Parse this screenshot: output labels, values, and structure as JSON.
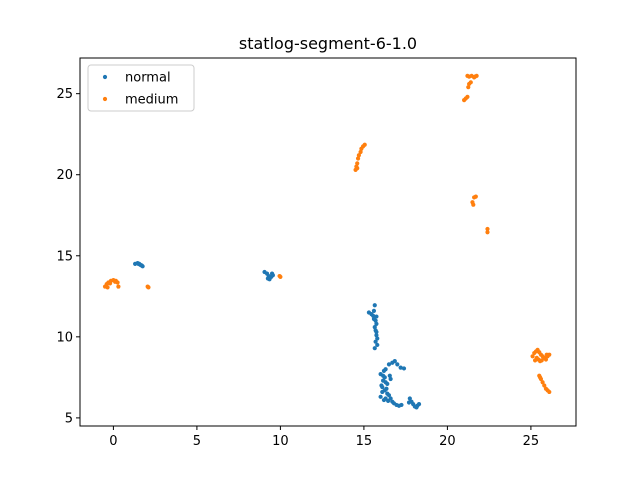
{
  "chart_data": {
    "type": "scatter",
    "title": "statlog-segment-6-1.0",
    "xlabel": "",
    "ylabel": "",
    "xlim": [
      -2.0,
      27.7
    ],
    "ylim": [
      4.5,
      27.2
    ],
    "xticks": [
      0,
      5,
      10,
      15,
      20,
      25
    ],
    "yticks": [
      5,
      10,
      15,
      20,
      25
    ],
    "grid": false,
    "legend_position": "upper left",
    "series": [
      {
        "name": "normal",
        "color": "#1f77b4",
        "points": [
          [
            1.3,
            14.5
          ],
          [
            1.45,
            14.55
          ],
          [
            1.55,
            14.5
          ],
          [
            1.6,
            14.45
          ],
          [
            1.7,
            14.4
          ],
          [
            1.75,
            14.35
          ],
          [
            1.5,
            14.5
          ],
          [
            1.65,
            14.42
          ],
          [
            9.05,
            14.0
          ],
          [
            9.2,
            13.9
          ],
          [
            9.3,
            13.75
          ],
          [
            9.35,
            13.55
          ],
          [
            9.5,
            13.9
          ],
          [
            9.55,
            13.8
          ],
          [
            9.25,
            13.6
          ],
          [
            9.45,
            13.7
          ],
          [
            15.3,
            11.5
          ],
          [
            15.45,
            11.4
          ],
          [
            15.55,
            11.3
          ],
          [
            15.65,
            11.95
          ],
          [
            15.6,
            11.6
          ],
          [
            15.75,
            11.25
          ],
          [
            15.7,
            11.0
          ],
          [
            15.75,
            10.8
          ],
          [
            15.65,
            10.6
          ],
          [
            15.7,
            10.4
          ],
          [
            15.75,
            10.1
          ],
          [
            15.8,
            9.9
          ],
          [
            15.7,
            9.7
          ],
          [
            15.65,
            9.3
          ],
          [
            15.8,
            9.5
          ],
          [
            15.75,
            10.3
          ],
          [
            15.6,
            11.1
          ],
          [
            16.0,
            6.3
          ],
          [
            16.1,
            6.6
          ],
          [
            16.05,
            7.0
          ],
          [
            16.15,
            7.3
          ],
          [
            16.0,
            7.7
          ],
          [
            16.2,
            7.9
          ],
          [
            16.25,
            7.5
          ],
          [
            16.3,
            7.2
          ],
          [
            16.1,
            6.9
          ],
          [
            16.35,
            6.8
          ],
          [
            16.4,
            6.5
          ],
          [
            16.3,
            6.2
          ],
          [
            16.5,
            6.4
          ],
          [
            16.6,
            6.2
          ],
          [
            16.7,
            6.0
          ],
          [
            16.8,
            5.9
          ],
          [
            16.95,
            5.8
          ],
          [
            17.1,
            5.75
          ],
          [
            17.25,
            5.8
          ],
          [
            16.2,
            6.1
          ],
          [
            16.45,
            6.05
          ],
          [
            16.3,
            8.0
          ],
          [
            16.5,
            8.3
          ],
          [
            16.7,
            8.4
          ],
          [
            16.85,
            8.5
          ],
          [
            17.0,
            8.3
          ],
          [
            17.2,
            8.1
          ],
          [
            17.4,
            8.05
          ],
          [
            16.55,
            7.6
          ],
          [
            16.4,
            7.1
          ],
          [
            16.6,
            7.4
          ],
          [
            16.25,
            6.7
          ],
          [
            16.15,
            7.6
          ],
          [
            17.75,
            6.2
          ],
          [
            17.7,
            5.95
          ],
          [
            17.85,
            6.0
          ],
          [
            17.95,
            5.85
          ],
          [
            18.05,
            5.7
          ],
          [
            18.2,
            5.75
          ],
          [
            18.3,
            5.85
          ],
          [
            18.15,
            5.65
          ]
        ]
      },
      {
        "name": "medium",
        "color": "#ff7f0e",
        "points": [
          [
            -0.5,
            13.1
          ],
          [
            -0.4,
            13.25
          ],
          [
            -0.3,
            13.35
          ],
          [
            -0.15,
            13.45
          ],
          [
            0.0,
            13.5
          ],
          [
            0.15,
            13.45
          ],
          [
            0.25,
            13.35
          ],
          [
            0.1,
            13.4
          ],
          [
            -0.35,
            13.05
          ],
          [
            0.3,
            13.1
          ],
          [
            -0.2,
            13.3
          ],
          [
            2.05,
            13.1
          ],
          [
            2.1,
            13.05
          ],
          [
            9.95,
            13.75
          ],
          [
            10.0,
            13.7
          ],
          [
            14.5,
            20.3
          ],
          [
            14.55,
            20.5
          ],
          [
            14.6,
            20.7
          ],
          [
            14.65,
            21.0
          ],
          [
            14.7,
            21.2
          ],
          [
            14.8,
            21.4
          ],
          [
            14.85,
            21.6
          ],
          [
            14.95,
            21.75
          ],
          [
            15.05,
            21.85
          ],
          [
            14.6,
            20.4
          ],
          [
            21.0,
            24.6
          ],
          [
            21.1,
            24.7
          ],
          [
            21.2,
            24.8
          ],
          [
            21.25,
            25.4
          ],
          [
            21.3,
            25.6
          ],
          [
            21.3,
            26.05
          ],
          [
            21.45,
            26.1
          ],
          [
            21.6,
            26.0
          ],
          [
            21.75,
            26.1
          ],
          [
            21.4,
            25.7
          ],
          [
            21.65,
            26.05
          ],
          [
            21.2,
            26.1
          ],
          [
            21.5,
            18.3
          ],
          [
            21.55,
            18.15
          ],
          [
            21.6,
            18.6
          ],
          [
            21.7,
            18.65
          ],
          [
            22.4,
            16.65
          ],
          [
            22.4,
            16.45
          ],
          [
            25.1,
            8.8
          ],
          [
            25.2,
            9.0
          ],
          [
            25.3,
            9.1
          ],
          [
            25.4,
            9.2
          ],
          [
            25.5,
            9.05
          ],
          [
            25.6,
            8.9
          ],
          [
            25.7,
            8.8
          ],
          [
            25.8,
            8.7
          ],
          [
            25.9,
            8.6
          ],
          [
            26.0,
            8.8
          ],
          [
            26.1,
            8.9
          ],
          [
            25.45,
            8.6
          ],
          [
            25.55,
            8.5
          ],
          [
            25.35,
            8.7
          ],
          [
            25.25,
            8.55
          ],
          [
            25.65,
            8.55
          ],
          [
            25.95,
            8.9
          ],
          [
            25.5,
            7.6
          ],
          [
            25.6,
            7.4
          ],
          [
            25.7,
            7.2
          ],
          [
            25.8,
            7.0
          ],
          [
            25.9,
            6.8
          ],
          [
            26.0,
            6.7
          ],
          [
            26.1,
            6.6
          ],
          [
            25.55,
            7.5
          ]
        ]
      }
    ]
  }
}
